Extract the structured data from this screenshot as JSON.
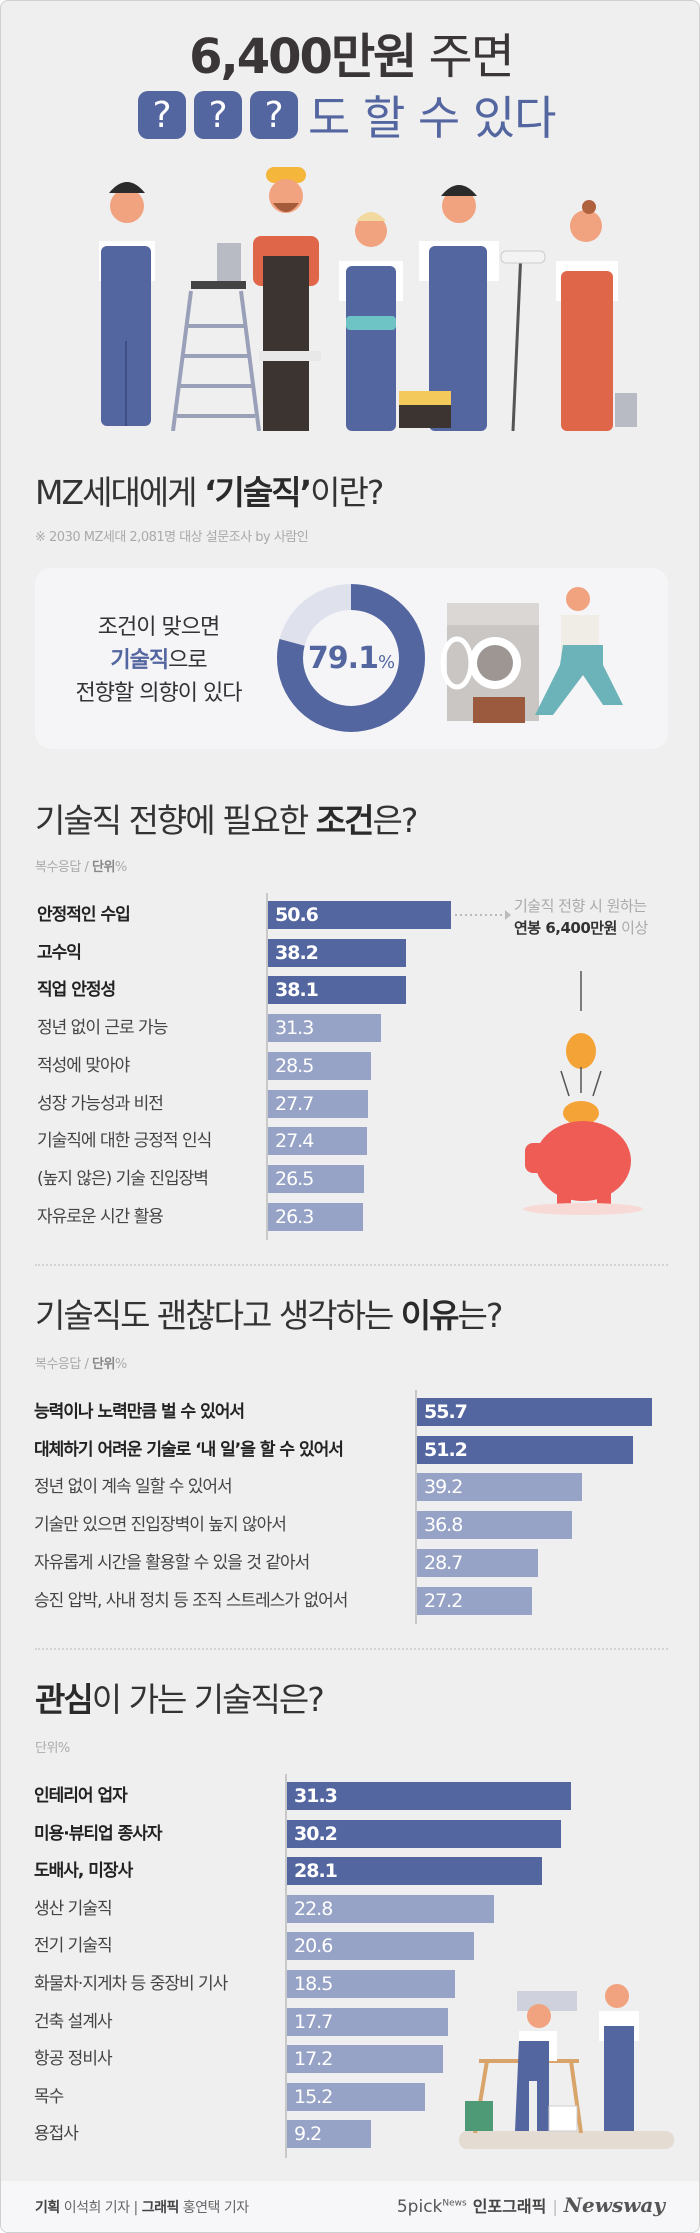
{
  "header": {
    "title_bold": "6,400만원",
    "title_rest": "주면",
    "question_marks": [
      "?",
      "?",
      "?"
    ],
    "subtitle_rest": "도 할 수 있다"
  },
  "section1": {
    "title_pre": "MZ세대에게 ",
    "title_bold": "‘기술직’",
    "title_post": "이란?",
    "source": "※ 2030 MZ세대 2,081명 대상 설문조사 by 사람인",
    "card_line1": "조건이 맞으면",
    "card_line2_bold": "기술직",
    "card_line2_rest": "으로",
    "card_line3": "전향할 의향이 있다",
    "donut_value": "79.1",
    "donut_unit": "%"
  },
  "section2": {
    "title_pre": "기술직 전향에 필요한 ",
    "title_bold": "조건",
    "title_post": "은?",
    "unit_pre": "복수응답 / ",
    "unit_bold": "단위",
    "unit_post": "%",
    "note_line1": "기술직 전향 시 원하는",
    "note_bold": "연봉 6,400만원",
    "note_rest": " 이상"
  },
  "section3": {
    "title_pre": "기술직도 괜찮다고 생각하는 ",
    "title_bold": "이유",
    "title_post": "는?",
    "unit_pre": "복수응답 / ",
    "unit_bold": "단위",
    "unit_post": "%"
  },
  "section4": {
    "title_bold": "관심",
    "title_post": "이 가는 기술직은?",
    "unit": "단위%"
  },
  "footer": {
    "plan_label": "기획",
    "plan_name": "이석희 기자",
    "divider": "|",
    "graphic_label": "그래픽",
    "graphic_name": "홍연택 기자",
    "brand_5pick": "5pick",
    "brand_news": "News",
    "brand_info": "인포그래픽",
    "brand_divider": "|",
    "brand_newsway": "Newsway"
  },
  "colors": {
    "background": "#efefef",
    "accent": "#5466a0",
    "bar_light": "#97a3c6",
    "donut_rest": "#dfe2ed"
  },
  "chart_data": [
    {
      "type": "pie",
      "variant": "donut",
      "values": [
        79.1,
        20.9
      ],
      "highlight": "79.1%"
    },
    {
      "type": "bar",
      "orientation": "horizontal",
      "unit": "%",
      "categories": [
        "안정적인 수입",
        "고수익",
        "직업 안정성",
        "정년 없이 근로 가능",
        "적성에 맞아야",
        "성장 가능성과 비전",
        "기술직에 대한 긍정적 인식",
        "(높지 않은) 기술 진입장벽",
        "자유로운 시간 활용"
      ],
      "values": [
        50.6,
        38.2,
        38.1,
        31.3,
        28.5,
        27.7,
        27.4,
        26.5,
        26.3
      ],
      "highlighted_top": 3
    },
    {
      "type": "bar",
      "orientation": "horizontal",
      "unit": "%",
      "categories": [
        "능력이나 노력만큼 벌 수 있어서",
        "대체하기 어려운 기술로 ‘내 일’을 할 수 있어서",
        "정년 없이 계속 일할 수 있어서",
        "기술만 있으면 진입장벽이 높지 않아서",
        "자유롭게 시간을 활용할 수 있을 것 같아서",
        "승진 압박, 사내 정치 등 조직 스트레스가 없어서"
      ],
      "values": [
        55.7,
        51.2,
        39.2,
        36.8,
        28.7,
        27.2
      ],
      "highlighted_top": 2
    },
    {
      "type": "bar",
      "orientation": "horizontal",
      "unit": "%",
      "categories": [
        "인테리어 업자",
        "미용·뷰티업 종사자",
        "도배사, 미장사",
        "생산 기술직",
        "전기 기술직",
        "화물차·지게차 등 중장비 기사",
        "건축 설계사",
        "항공 정비사",
        "목수",
        "용접사"
      ],
      "values": [
        31.3,
        30.2,
        28.1,
        22.8,
        20.6,
        18.5,
        17.7,
        17.2,
        15.2,
        9.2
      ],
      "highlighted_top": 3
    }
  ]
}
